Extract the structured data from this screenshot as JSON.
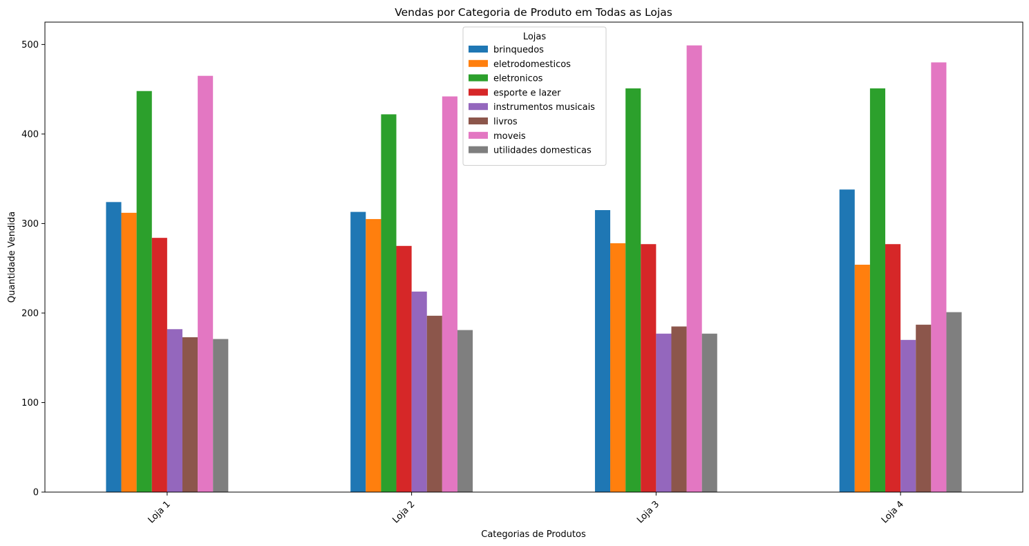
{
  "chart_data": {
    "type": "bar",
    "title": "Vendas por Categoria de Produto em Todas as Lojas",
    "xlabel": "Categorias de Produtos",
    "ylabel": "Quantidade Vendida",
    "categories": [
      "Loja 1",
      "Loja 2",
      "Loja 3",
      "Loja 4"
    ],
    "ylim": [
      0,
      525
    ],
    "yticks": [
      0,
      100,
      200,
      300,
      400,
      500
    ],
    "grid": false,
    "legend": {
      "title": "Lojas",
      "position": "top-center"
    },
    "series": [
      {
        "name": "brinquedos",
        "color": "#1f77b4",
        "values": [
          324,
          313,
          315,
          338
        ]
      },
      {
        "name": "eletrodomesticos",
        "color": "#ff7f0e",
        "values": [
          312,
          305,
          278,
          254
        ]
      },
      {
        "name": "eletronicos",
        "color": "#2ca02c",
        "values": [
          448,
          422,
          451,
          451
        ]
      },
      {
        "name": "esporte e lazer",
        "color": "#d62728",
        "values": [
          284,
          275,
          277,
          277
        ]
      },
      {
        "name": "instrumentos musicais",
        "color": "#9467bd",
        "values": [
          182,
          224,
          177,
          170
        ]
      },
      {
        "name": "livros",
        "color": "#8c564b",
        "values": [
          173,
          197,
          185,
          187
        ]
      },
      {
        "name": "moveis",
        "color": "#e377c2",
        "values": [
          465,
          442,
          499,
          480
        ]
      },
      {
        "name": "utilidades domesticas",
        "color": "#7f7f7f",
        "values": [
          171,
          181,
          177,
          201
        ]
      }
    ]
  }
}
